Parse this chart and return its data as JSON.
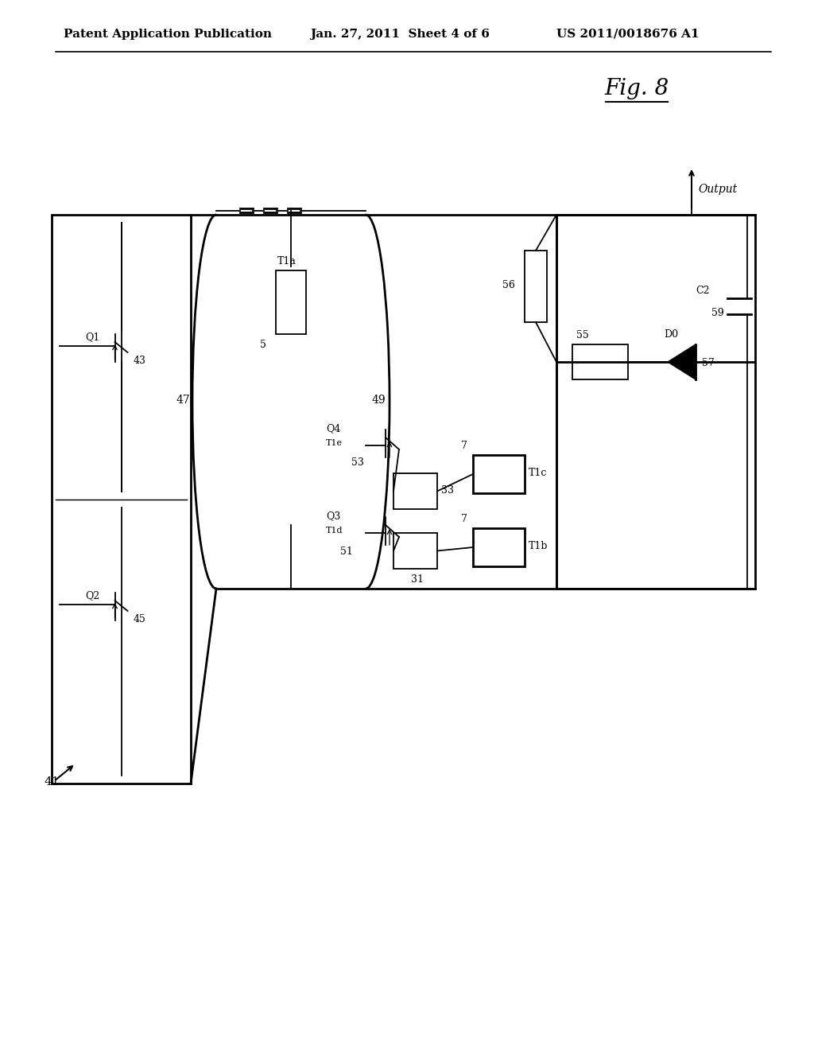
{
  "bg_color": "#ffffff",
  "header_left": "Patent Application Publication",
  "header_center": "Jan. 27, 2011  Sheet 4 of 6",
  "header_right": "US 2011/0018676 A1",
  "fig_label": "Fig. 8",
  "line_color": "#000000",
  "lw": 1.3,
  "lw_thick": 2.0
}
